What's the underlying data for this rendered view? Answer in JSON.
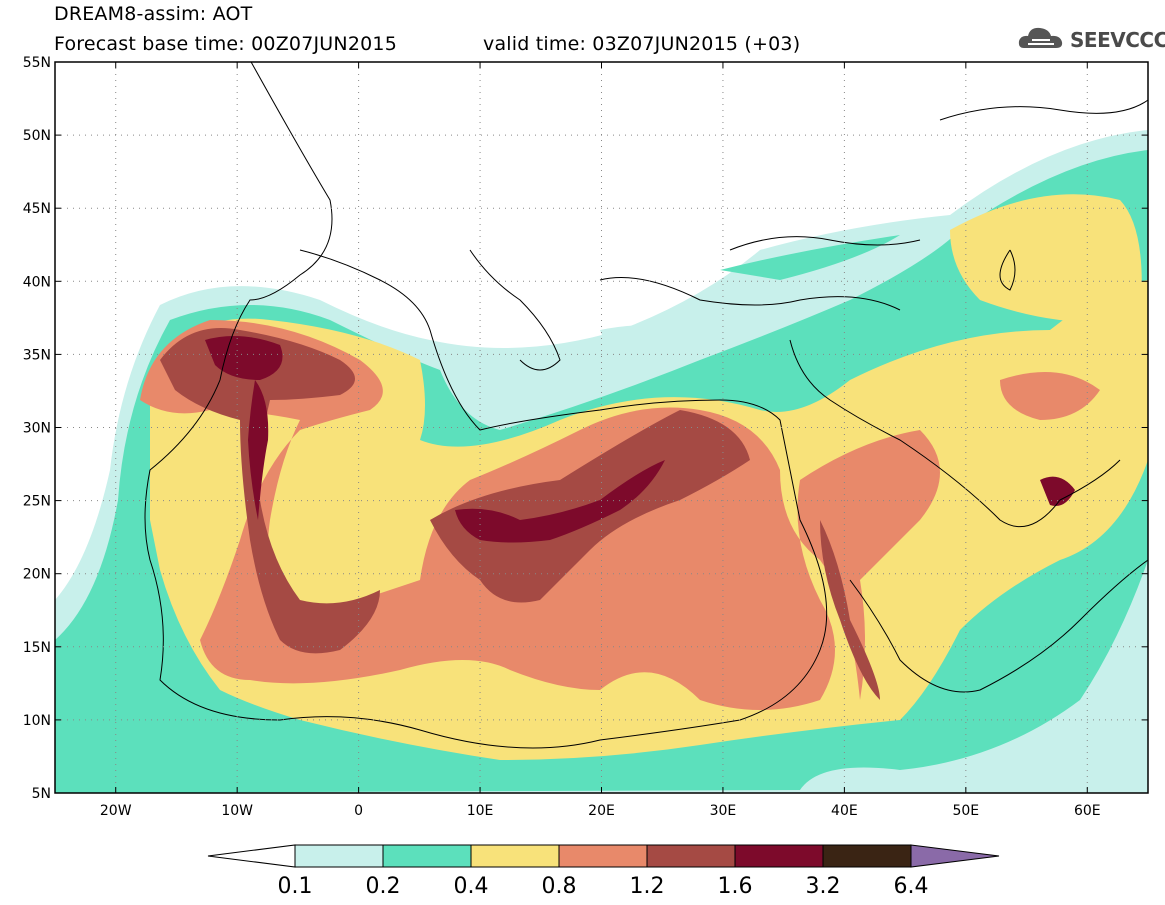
{
  "header": {
    "line1": "DREAM8-assim: AOT",
    "base_time": "Forecast base time: 00Z07JUN2015",
    "valid_time": "valid time: 03Z07JUN2015 (+03)"
  },
  "logo": {
    "icon": "cloud-logo-icon",
    "text": "SEEVCCC"
  },
  "map": {
    "lat_labels": [
      "55N",
      "50N",
      "45N",
      "40N",
      "35N",
      "30N",
      "25N",
      "20N",
      "15N",
      "10N",
      "5N"
    ],
    "lon_labels": [
      "20W",
      "10W",
      "0",
      "10E",
      "20E",
      "30E",
      "40E",
      "50E",
      "60E"
    ],
    "lat_range": [
      5,
      55
    ],
    "lon_range": [
      -25,
      65
    ],
    "grid": "dotted"
  },
  "colorbar": {
    "levels": [
      "0.1",
      "0.2",
      "0.4",
      "0.8",
      "1.2",
      "1.6",
      "3.2",
      "6.4"
    ],
    "colors": [
      "#ffffff",
      "#c8f0eb",
      "#5ce0bc",
      "#f8e27a",
      "#e8896a",
      "#a54a44",
      "#7d0a2b",
      "#3a2414",
      "#8a6aa8"
    ]
  }
}
